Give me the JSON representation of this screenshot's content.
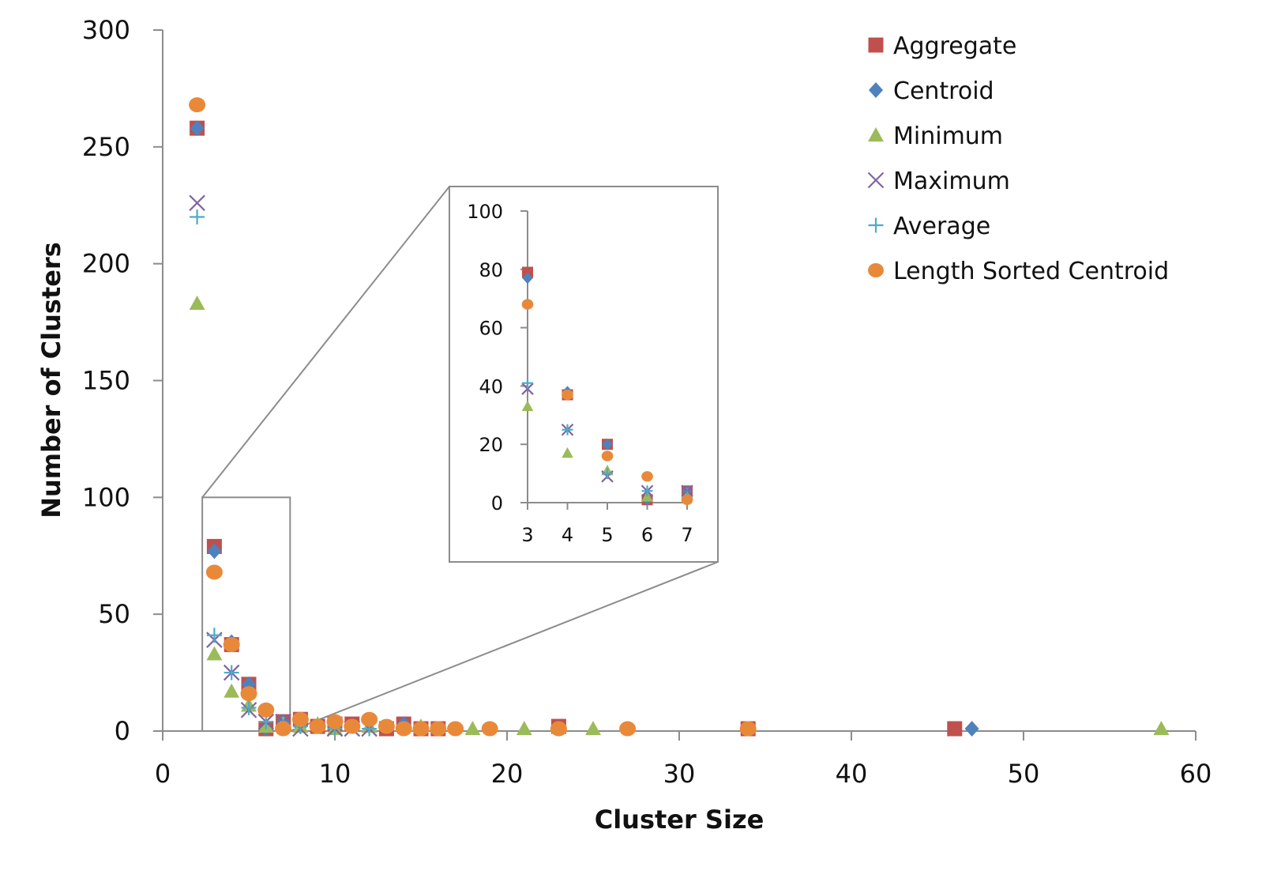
{
  "chart_data": {
    "type": "scatter",
    "title": "",
    "xlabel": "Cluster Size",
    "ylabel": "Number of Clusters",
    "xlim": [
      0,
      60
    ],
    "ylim": [
      0,
      300
    ],
    "xticks": [
      0,
      10,
      20,
      30,
      40,
      50,
      60
    ],
    "yticks": [
      0,
      50,
      100,
      150,
      200,
      250,
      300
    ],
    "grid": false,
    "legend_position": "top-right",
    "series": [
      {
        "name": "Aggregate",
        "marker": "square",
        "color": "#C0504D",
        "points": [
          [
            2,
            258
          ],
          [
            3,
            79
          ],
          [
            4,
            37
          ],
          [
            5,
            20
          ],
          [
            6,
            1
          ],
          [
            7,
            4
          ],
          [
            8,
            5
          ],
          [
            9,
            2
          ],
          [
            10,
            3
          ],
          [
            11,
            3
          ],
          [
            13,
            1
          ],
          [
            14,
            3
          ],
          [
            15,
            1
          ],
          [
            16,
            1
          ],
          [
            23,
            2
          ],
          [
            34,
            1
          ],
          [
            46,
            1
          ]
        ]
      },
      {
        "name": "Centroid",
        "marker": "diamond",
        "color": "#4F81BD",
        "points": [
          [
            2,
            258
          ],
          [
            3,
            77
          ],
          [
            4,
            38
          ],
          [
            5,
            20
          ],
          [
            6,
            1
          ],
          [
            7,
            4
          ],
          [
            8,
            2
          ],
          [
            9,
            2
          ],
          [
            10,
            2
          ],
          [
            14,
            3
          ],
          [
            23,
            1
          ],
          [
            47,
            1
          ]
        ]
      },
      {
        "name": "Minimum",
        "marker": "triangle",
        "color": "#9BBB59",
        "points": [
          [
            2,
            183
          ],
          [
            3,
            33
          ],
          [
            4,
            17
          ],
          [
            5,
            11
          ],
          [
            6,
            2
          ],
          [
            7,
            3
          ],
          [
            8,
            2
          ],
          [
            9,
            3
          ],
          [
            10,
            1
          ],
          [
            12,
            2
          ],
          [
            15,
            2
          ],
          [
            18,
            1
          ],
          [
            21,
            1
          ],
          [
            25,
            1
          ],
          [
            58,
            1
          ]
        ]
      },
      {
        "name": "Maximum",
        "marker": "x",
        "color": "#8064A2",
        "points": [
          [
            2,
            226
          ],
          [
            3,
            39
          ],
          [
            4,
            25
          ],
          [
            5,
            9
          ],
          [
            6,
            4
          ],
          [
            7,
            4
          ],
          [
            8,
            1
          ],
          [
            10,
            1
          ],
          [
            11,
            1
          ],
          [
            12,
            1
          ]
        ]
      },
      {
        "name": "Average",
        "marker": "plus",
        "color": "#4BACC6",
        "points": [
          [
            2,
            220
          ],
          [
            3,
            41
          ],
          [
            4,
            25
          ],
          [
            5,
            10
          ],
          [
            6,
            4
          ],
          [
            7,
            2
          ],
          [
            8,
            2
          ],
          [
            10,
            1
          ],
          [
            12,
            1
          ]
        ]
      },
      {
        "name": "Length Sorted Centroid",
        "marker": "circle",
        "color": "#E8893A",
        "points": [
          [
            2,
            268
          ],
          [
            3,
            68
          ],
          [
            4,
            37
          ],
          [
            5,
            16
          ],
          [
            6,
            9
          ],
          [
            7,
            1
          ],
          [
            8,
            5
          ],
          [
            9,
            2
          ],
          [
            10,
            4
          ],
          [
            11,
            2
          ],
          [
            12,
            5
          ],
          [
            13,
            2
          ],
          [
            14,
            1
          ],
          [
            15,
            1
          ],
          [
            16,
            1
          ],
          [
            17,
            1
          ],
          [
            19,
            1
          ],
          [
            23,
            1
          ],
          [
            27,
            1
          ],
          [
            34,
            1
          ]
        ]
      }
    ],
    "inset": {
      "xlim": [
        3,
        7
      ],
      "ylim": [
        0,
        100
      ],
      "xticks": [
        3,
        4,
        5,
        6,
        7
      ],
      "yticks": [
        0,
        20,
        40,
        60,
        80,
        100
      ],
      "zoom_region": {
        "x": [
          2.3,
          7.4
        ],
        "y": [
          0,
          100
        ]
      }
    }
  }
}
